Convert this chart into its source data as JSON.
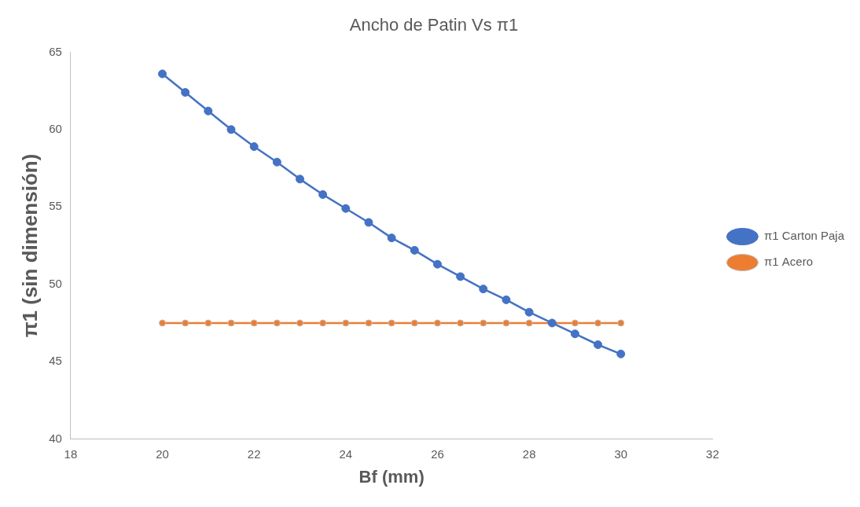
{
  "chart_data": {
    "type": "line",
    "title": "Ancho de Patin Vs π1",
    "xlabel": "Bf (mm)",
    "ylabel": "π1 (sin dimensión)",
    "x": [
      20,
      20.5,
      21,
      21.5,
      22,
      22.5,
      23,
      23.5,
      24,
      24.5,
      25,
      25.5,
      26,
      26.5,
      27,
      27.5,
      28,
      28.5,
      29,
      29.5,
      30
    ],
    "series": [
      {
        "name": "π1 Carton Paja",
        "color": "#4472c4",
        "values": [
          63.6,
          62.4,
          61.2,
          60.0,
          58.9,
          57.9,
          56.8,
          55.8,
          54.9,
          54.0,
          53.0,
          52.2,
          51.3,
          50.5,
          49.7,
          49.0,
          48.2,
          47.5,
          46.8,
          46.1,
          45.5
        ]
      },
      {
        "name": "π1 Acero",
        "color": "#ed7d31",
        "values": [
          47.5,
          47.5,
          47.5,
          47.5,
          47.5,
          47.5,
          47.5,
          47.5,
          47.5,
          47.5,
          47.5,
          47.5,
          47.5,
          47.5,
          47.5,
          47.5,
          47.5,
          47.5,
          47.5,
          47.5,
          47.5
        ]
      }
    ],
    "xlim": [
      18,
      32
    ],
    "xticks": [
      18,
      20,
      22,
      24,
      26,
      28,
      30,
      32
    ],
    "ylim": [
      40,
      65
    ],
    "yticks": [
      40,
      45,
      50,
      55,
      60,
      65
    ],
    "grid": false,
    "legend": "right",
    "marker": "circle",
    "line_style": "solid"
  }
}
